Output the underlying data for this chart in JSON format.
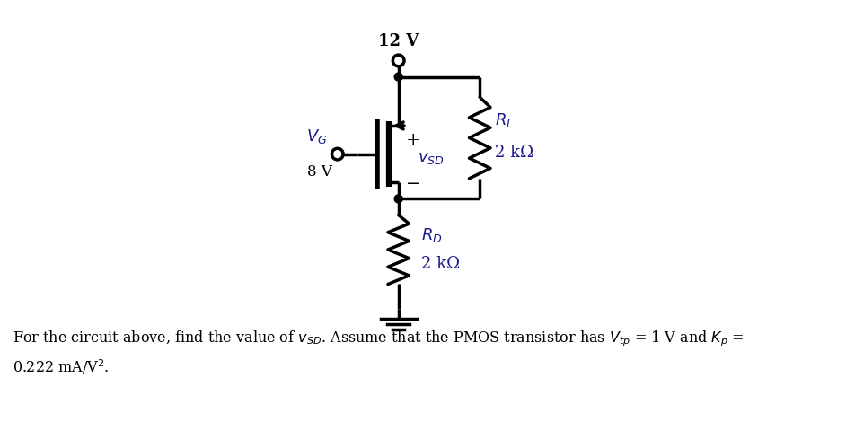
{
  "bg_color": "#ffffff",
  "line_color": "#000000",
  "text_color": "#1a1a8c",
  "lw": 2.5,
  "supply_voltage": "12 V",
  "vg_label": "V_G",
  "vg_value": "8 V",
  "vsd_label": "v_SD",
  "plus_sign": "+",
  "minus_sign": "−",
  "rl_label": "R_L",
  "rl_value": "2 kΩ",
  "rd_label": "R_D",
  "rd_value": "2 kΩ",
  "caption_line1": "For the circuit above, find the value of $v_{SD}$. Assume that the PMOS transistor has $V_{tp}$ = 1 V and $K_p$ =",
  "caption_line2": "0.222 mA/V$^2$."
}
